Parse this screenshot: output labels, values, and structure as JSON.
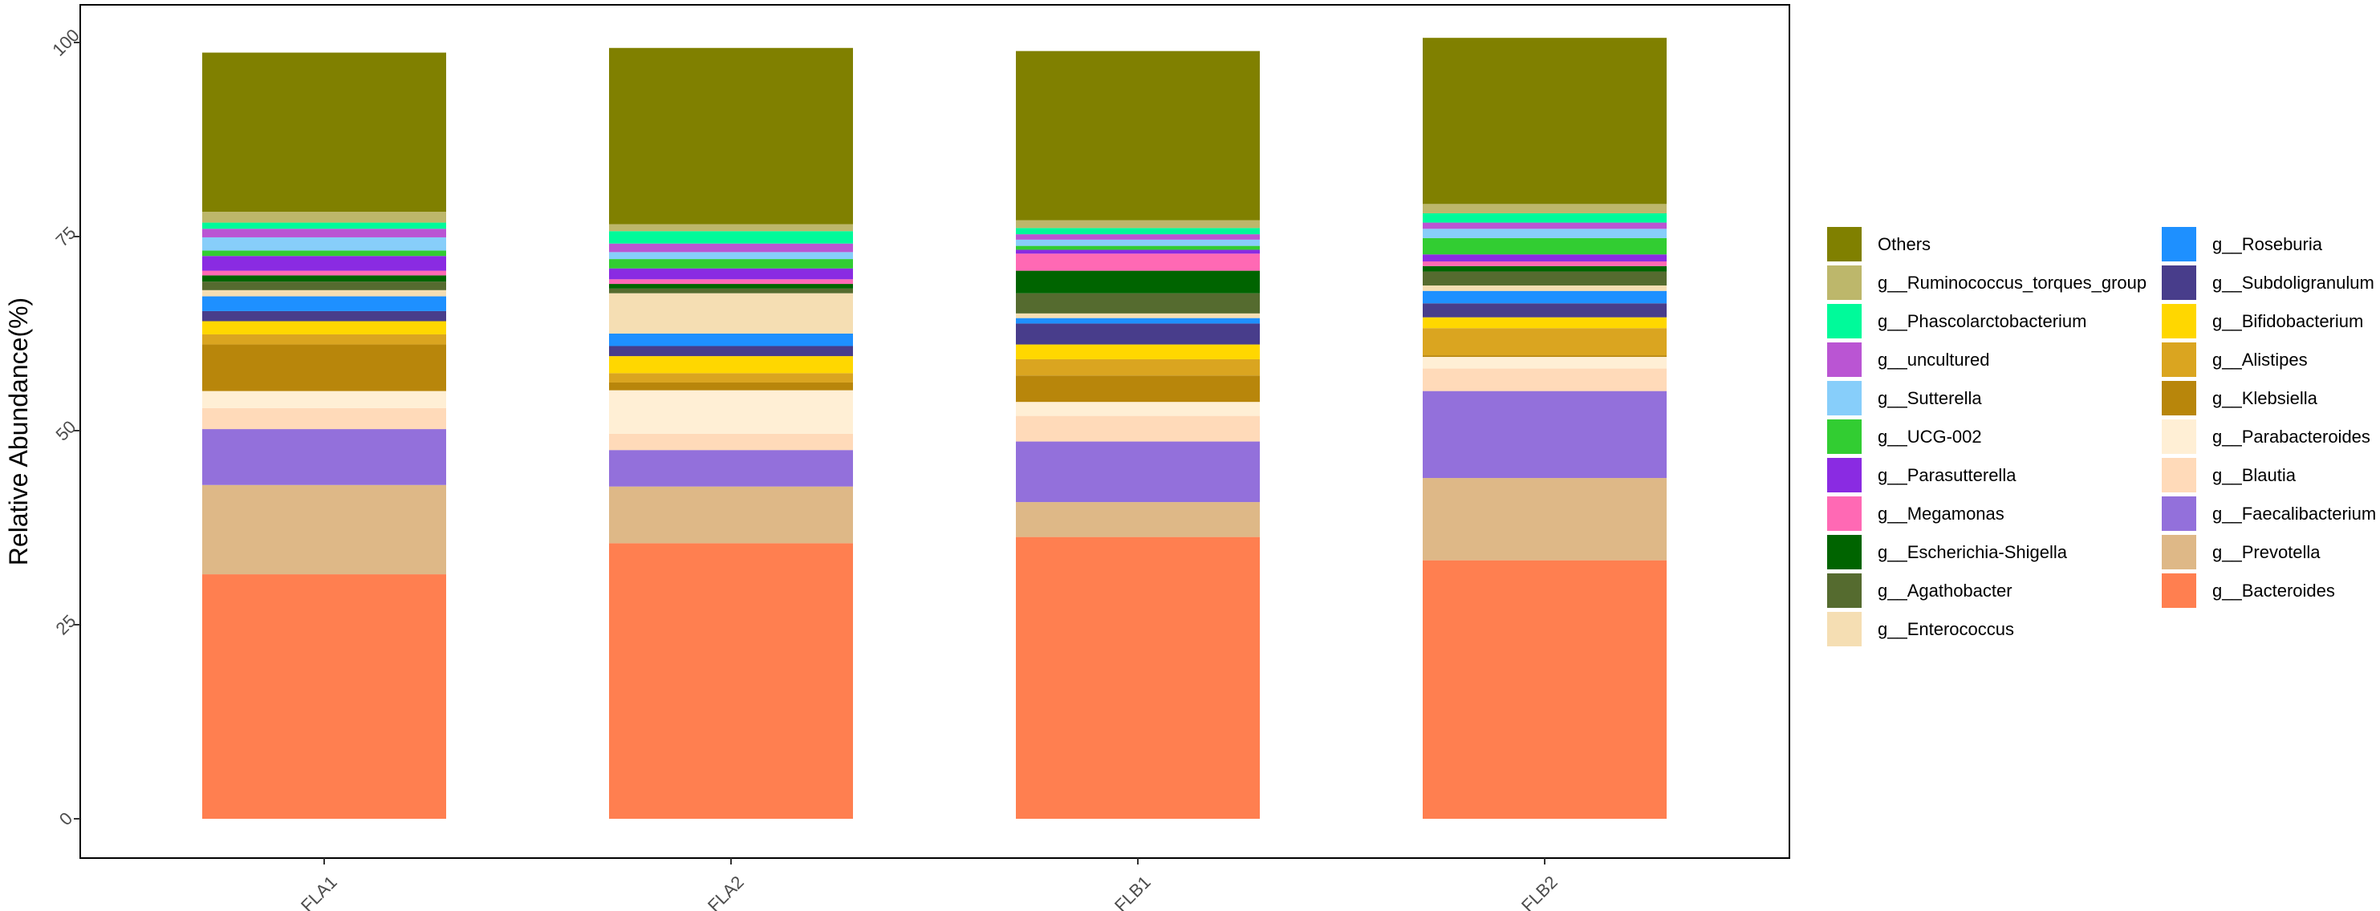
{
  "chart_data": {
    "type": "bar",
    "stacked": true,
    "title": "",
    "xlabel": "",
    "ylabel": "Relative Abundance(%)",
    "ylim": [
      0,
      100
    ],
    "yticks": [
      0,
      25,
      50,
      75,
      100
    ],
    "grid": false,
    "legend_position": "right",
    "categories": [
      "FLA1",
      "FLA2",
      "FLB1",
      "FLB2"
    ],
    "series": [
      {
        "name": "g__Bacteroides",
        "color": "#FF7F50",
        "values": [
          31.5,
          35.5,
          36.3,
          33.3
        ]
      },
      {
        "name": "g__Prevotella",
        "color": "#DEB887",
        "values": [
          11.5,
          7.3,
          4.5,
          10.6
        ]
      },
      {
        "name": "g__Faecalibacterium",
        "color": "#9370DB",
        "values": [
          7.2,
          4.7,
          7.8,
          11.2
        ]
      },
      {
        "name": "g__Blautia",
        "color": "#FFDAB9",
        "values": [
          2.7,
          2.1,
          3.3,
          2.9
        ]
      },
      {
        "name": "g__Parabacteroides",
        "color": "#FFEFD5",
        "values": [
          2.2,
          5.6,
          1.8,
          1.5
        ]
      },
      {
        "name": "g__Klebsiella",
        "color": "#B8860B",
        "values": [
          6.0,
          1.0,
          3.4,
          0.2
        ]
      },
      {
        "name": "g__Alistipes",
        "color": "#DAA520",
        "values": [
          1.3,
          1.2,
          2.1,
          3.5
        ]
      },
      {
        "name": "g__Bifidobacterium",
        "color": "#FFD700",
        "values": [
          1.7,
          2.2,
          1.9,
          1.4
        ]
      },
      {
        "name": "g__Subdoligranulum",
        "color": "#483D8B",
        "values": [
          1.3,
          1.3,
          2.7,
          1.8
        ]
      },
      {
        "name": "g__Roseburia",
        "color": "#1E90FF",
        "values": [
          1.9,
          1.6,
          0.7,
          1.6
        ]
      },
      {
        "name": "g__Enterococcus",
        "color": "#F5DEB3",
        "values": [
          0.8,
          5.2,
          0.6,
          0.7
        ]
      },
      {
        "name": "g__Agathobacter",
        "color": "#556B2F",
        "values": [
          1.1,
          0.6,
          2.6,
          1.8
        ]
      },
      {
        "name": "g__Escherichia-Shigella",
        "color": "#006400",
        "values": [
          0.8,
          0.6,
          2.9,
          0.7
        ]
      },
      {
        "name": "g__Megamonas",
        "color": "#FF69B4",
        "values": [
          0.6,
          0.6,
          2.2,
          0.6
        ]
      },
      {
        "name": "g__Parasutterella",
        "color": "#8A2BE2",
        "values": [
          1.9,
          1.4,
          0.5,
          0.9
        ]
      },
      {
        "name": "g__UCG-002",
        "color": "#32CD32",
        "values": [
          0.7,
          1.2,
          0.5,
          2.1
        ]
      },
      {
        "name": "g__Sutterella",
        "color": "#87CEFA",
        "values": [
          1.7,
          0.9,
          0.8,
          1.2
        ]
      },
      {
        "name": "g__uncultured",
        "color": "#BA55D3",
        "values": [
          1.1,
          1.1,
          0.7,
          0.8
        ]
      },
      {
        "name": "g__Phascolarctobacterium",
        "color": "#00FA9A",
        "values": [
          0.8,
          1.6,
          0.8,
          1.2
        ]
      },
      {
        "name": "g__Ruminococcus_torques_group",
        "color": "#BDB76B",
        "values": [
          1.4,
          0.9,
          1.0,
          1.2
        ]
      },
      {
        "name": "Others",
        "color": "#808000",
        "values": [
          20.5,
          22.7,
          21.8,
          21.4
        ]
      }
    ],
    "legend_order": [
      "Others",
      "g__Ruminococcus_torques_group",
      "g__Phascolarctobacterium",
      "g__uncultured",
      "g__Sutterella",
      "g__UCG-002",
      "g__Parasutterella",
      "g__Megamonas",
      "g__Escherichia-Shigella",
      "g__Agathobacter",
      "g__Enterococcus",
      "g__Roseburia",
      "g__Subdoligranulum",
      "g__Bifidobacterium",
      "g__Alistipes",
      "g__Klebsiella",
      "g__Parabacteroides",
      "g__Blautia",
      "g__Faecalibacterium",
      "g__Prevotella",
      "g__Bacteroides"
    ]
  }
}
